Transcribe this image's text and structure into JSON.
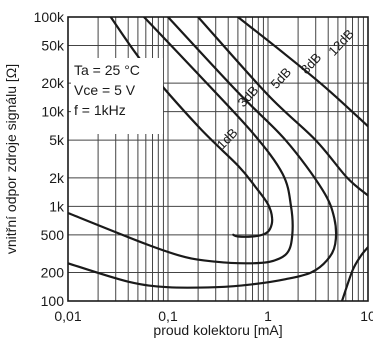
{
  "chart_data": {
    "type": "line",
    "xlabel": "proud kolektoru [mA]",
    "ylabel": "vnitřní odpor zdroje signálu [Ω]",
    "x_scale": "log",
    "y_scale": "log",
    "xlim": [
      0.01,
      10
    ],
    "ylim": [
      100,
      100000
    ],
    "x_ticks": [
      0.01,
      0.1,
      1,
      10
    ],
    "x_tick_labels": [
      "0,01",
      "0,1",
      "1",
      "10"
    ],
    "y_ticks": [
      100,
      200,
      500,
      1000,
      2000,
      5000,
      10000,
      20000,
      50000,
      100000
    ],
    "y_tick_labels": [
      "100",
      "200",
      "500",
      "1k",
      "2k",
      "5k",
      "10k",
      "20k",
      "50k",
      "100k"
    ],
    "grid": true,
    "conditions": [
      "Ta = 25 °C",
      "Vce = 5 V",
      "f = 1kHz"
    ],
    "series": [
      {
        "name": "1dB",
        "points": [
          [
            0.0267,
            100000
          ],
          [
            0.06,
            30000
          ],
          [
            0.2,
            7000
          ],
          [
            0.5,
            2700
          ],
          [
            0.75,
            1600
          ],
          [
            1.0,
            1050
          ],
          [
            1.1,
            750
          ],
          [
            1.05,
            580
          ],
          [
            0.92,
            510
          ],
          [
            0.7,
            480
          ],
          [
            0.5,
            480
          ],
          [
            0.45,
            500
          ]
        ]
      },
      {
        "name": "3dB",
        "points": [
          [
            0.0575,
            100000
          ],
          [
            0.2,
            25000
          ],
          [
            0.7,
            6000
          ],
          [
            1.4,
            2200
          ],
          [
            1.7,
            1000
          ],
          [
            1.75,
            500
          ],
          [
            1.55,
            320
          ],
          [
            1.05,
            260
          ],
          [
            0.6,
            250
          ],
          [
            0.3,
            260
          ],
          [
            0.15,
            290
          ],
          [
            0.06,
            400
          ],
          [
            0.01,
            850
          ]
        ]
      },
      {
        "name": "5dB",
        "points": [
          [
            0.1,
            100000
          ],
          [
            0.5,
            16000
          ],
          [
            1.5,
            5000
          ],
          [
            3.5,
            1500
          ],
          [
            4.6,
            750
          ],
          [
            4.7,
            400
          ],
          [
            3.9,
            270
          ],
          [
            2.7,
            200
          ],
          [
            1.5,
            170
          ],
          [
            0.7,
            150
          ],
          [
            0.3,
            140
          ],
          [
            0.1,
            140
          ],
          [
            0.04,
            160
          ],
          [
            0.01,
            250
          ]
        ]
      },
      {
        "name": "8dB",
        "points": [
          [
            0.2,
            100000
          ],
          [
            1.0,
            15000
          ],
          [
            3.0,
            5000
          ],
          [
            6.2,
            2000
          ],
          [
            10,
            1300
          ]
        ]
      },
      {
        "name": "12dB",
        "points": [
          [
            0.5,
            100000
          ],
          [
            1.5,
            40000
          ],
          [
            4.0,
            17000
          ],
          [
            10,
            7000
          ]
        ]
      },
      {
        "name": "",
        "points": [
          [
            5.5,
            100
          ],
          [
            7.0,
            210
          ],
          [
            8.5,
            300
          ],
          [
            10,
            370
          ]
        ]
      }
    ]
  }
}
